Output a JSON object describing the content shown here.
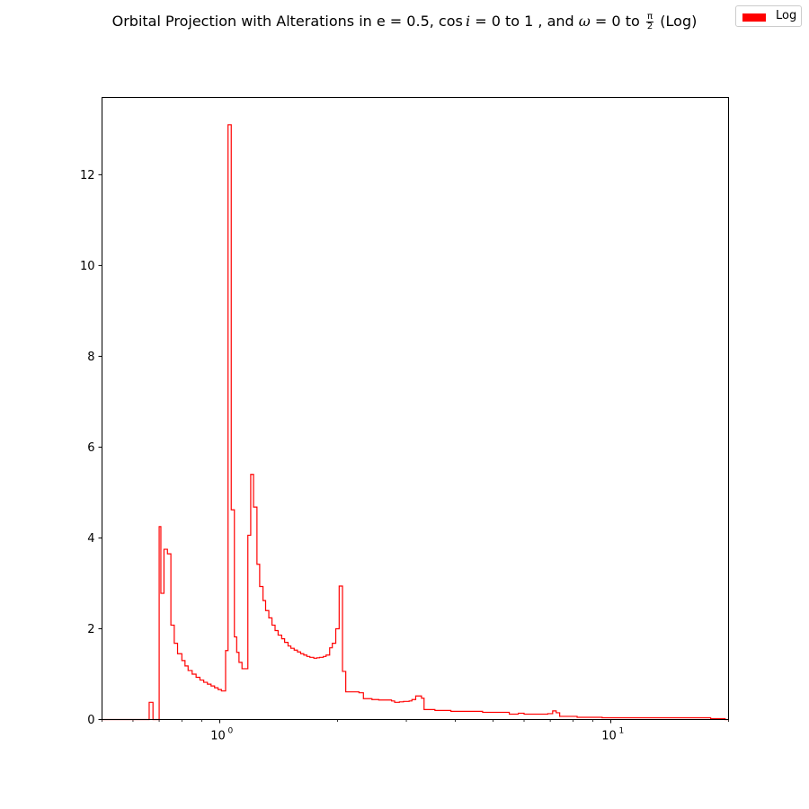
{
  "chart_data": {
    "type": "histogram-step",
    "title_parts": {
      "prefix": "Orbital Projection with Alterations in e = 0.5, cos",
      "i": "i",
      "mid1": " = 0 to 1 , and ",
      "omega": "ω",
      "mid2": " = 0 to ",
      "frac_num": "π",
      "frac_den": "2",
      "suffix": " (Log)"
    },
    "legend": {
      "entries": [
        "Log"
      ],
      "placement": "top-right"
    },
    "series_color": "#ff0000",
    "xscale": "log",
    "xlim": [
      0.5,
      20
    ],
    "ylim": [
      0,
      13.7
    ],
    "y_ticks": [
      0,
      2,
      4,
      6,
      8,
      10,
      12
    ],
    "x_ticks": [
      {
        "value": 1,
        "base": "10",
        "exp": "0"
      },
      {
        "value": 10,
        "base": "10",
        "exp": "1"
      }
    ],
    "x_minor_ticks": [
      0.5,
      0.6,
      0.7,
      0.8,
      0.9,
      2,
      3,
      4,
      5,
      6,
      7,
      8,
      9,
      20
    ],
    "bins": [
      [
        0.5,
        0.0
      ],
      [
        0.66,
        0.38
      ],
      [
        0.675,
        0.0
      ],
      [
        0.7,
        4.25
      ],
      [
        0.707,
        2.78
      ],
      [
        0.72,
        3.75
      ],
      [
        0.735,
        3.65
      ],
      [
        0.75,
        2.08
      ],
      [
        0.765,
        1.68
      ],
      [
        0.78,
        1.45
      ],
      [
        0.8,
        1.3
      ],
      [
        0.815,
        1.18
      ],
      [
        0.83,
        1.08
      ],
      [
        0.85,
        1.0
      ],
      [
        0.87,
        0.93
      ],
      [
        0.89,
        0.87
      ],
      [
        0.91,
        0.82
      ],
      [
        0.93,
        0.78
      ],
      [
        0.95,
        0.74
      ],
      [
        0.97,
        0.7
      ],
      [
        0.99,
        0.66
      ],
      [
        1.01,
        0.63
      ],
      [
        1.035,
        1.52
      ],
      [
        1.05,
        13.1
      ],
      [
        1.07,
        4.62
      ],
      [
        1.09,
        1.82
      ],
      [
        1.105,
        1.48
      ],
      [
        1.12,
        1.26
      ],
      [
        1.14,
        1.12
      ],
      [
        1.18,
        4.06
      ],
      [
        1.2,
        5.4
      ],
      [
        1.22,
        4.68
      ],
      [
        1.245,
        3.42
      ],
      [
        1.265,
        2.93
      ],
      [
        1.29,
        2.62
      ],
      [
        1.31,
        2.4
      ],
      [
        1.335,
        2.24
      ],
      [
        1.36,
        2.08
      ],
      [
        1.385,
        1.96
      ],
      [
        1.41,
        1.86
      ],
      [
        1.44,
        1.78
      ],
      [
        1.465,
        1.7
      ],
      [
        1.495,
        1.62
      ],
      [
        1.52,
        1.57
      ],
      [
        1.55,
        1.53
      ],
      [
        1.58,
        1.49
      ],
      [
        1.61,
        1.45
      ],
      [
        1.64,
        1.42
      ],
      [
        1.67,
        1.39
      ],
      [
        1.7,
        1.37
      ],
      [
        1.74,
        1.35
      ],
      [
        1.77,
        1.36
      ],
      [
        1.8,
        1.37
      ],
      [
        1.84,
        1.39
      ],
      [
        1.87,
        1.42
      ],
      [
        1.91,
        1.58
      ],
      [
        1.94,
        1.68
      ],
      [
        1.98,
        2.0
      ],
      [
        2.02,
        2.94
      ],
      [
        2.06,
        1.06
      ],
      [
        2.1,
        0.61
      ],
      [
        2.27,
        0.59
      ],
      [
        2.33,
        0.46
      ],
      [
        2.45,
        0.44
      ],
      [
        2.55,
        0.43
      ],
      [
        2.75,
        0.41
      ],
      [
        2.8,
        0.38
      ],
      [
        2.88,
        0.39
      ],
      [
        2.95,
        0.4
      ],
      [
        3.05,
        0.41
      ],
      [
        3.1,
        0.44
      ],
      [
        3.17,
        0.52
      ],
      [
        3.28,
        0.47
      ],
      [
        3.33,
        0.22
      ],
      [
        3.55,
        0.2
      ],
      [
        3.9,
        0.18
      ],
      [
        4.7,
        0.16
      ],
      [
        5.5,
        0.12
      ],
      [
        5.8,
        0.14
      ],
      [
        6.0,
        0.12
      ],
      [
        6.9,
        0.13
      ],
      [
        7.1,
        0.19
      ],
      [
        7.25,
        0.15
      ],
      [
        7.4,
        0.07
      ],
      [
        8.2,
        0.05
      ],
      [
        9.5,
        0.04
      ],
      [
        11.5,
        0.04
      ],
      [
        18.0,
        0.02
      ],
      [
        19.6,
        0.0
      ]
    ],
    "x_end": 20
  }
}
